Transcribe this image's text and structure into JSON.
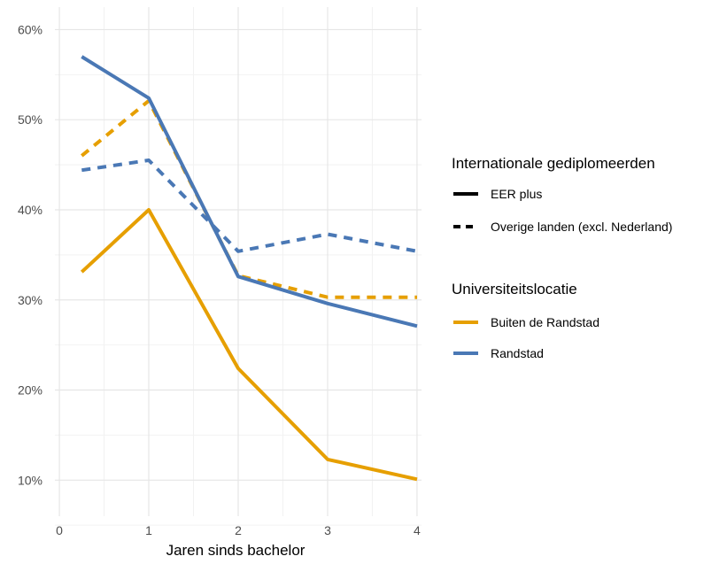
{
  "chart_data": {
    "type": "line",
    "xlabel": "Jaren sinds bachelor",
    "ylabel": "",
    "xlim": [
      -0.05,
      4.05
    ],
    "ylim": [
      0.06,
      0.625
    ],
    "x_ticks": [
      0,
      1,
      2,
      3,
      4
    ],
    "x_tick_labels": [
      "0",
      "1",
      "2",
      "3",
      "4"
    ],
    "y_ticks": [
      0.1,
      0.2,
      0.3,
      0.4,
      0.5,
      0.6
    ],
    "y_tick_labels": [
      "10%",
      "20%",
      "30%",
      "40%",
      "50%",
      "60%"
    ],
    "grid": true,
    "legend_position": "right",
    "legends": [
      {
        "title": "Internationale gediplomeerden",
        "entries": [
          {
            "label": "EER plus",
            "linetype": "solid"
          },
          {
            "label": "Overige landen (excl. Nederland)",
            "linetype": "dashed"
          }
        ]
      },
      {
        "title": "Universiteitslocatie",
        "entries": [
          {
            "label": "Buiten de Randstad",
            "color": "#E69F00"
          },
          {
            "label": "Randstad",
            "color": "#4A78B5"
          }
        ]
      }
    ],
    "series": [
      {
        "color": "#E69F00",
        "linetype": "dashed",
        "x": [
          0.25,
          1,
          2,
          3,
          4
        ],
        "y": [
          0.46,
          0.521,
          0.327,
          0.303,
          0.303
        ]
      },
      {
        "color": "#4A78B5",
        "linetype": "dashed",
        "x": [
          0.25,
          1,
          2,
          3,
          4
        ],
        "y": [
          0.444,
          0.455,
          0.354,
          0.373,
          0.354
        ]
      },
      {
        "color": "#E69F00",
        "linetype": "solid",
        "x": [
          0.25,
          1,
          2,
          3,
          4
        ],
        "y": [
          0.331,
          0.4,
          0.224,
          0.123,
          0.101
        ]
      },
      {
        "color": "#4A78B5",
        "linetype": "solid",
        "x": [
          0.25,
          1,
          2,
          3,
          4
        ],
        "y": [
          0.57,
          0.524,
          0.326,
          0.296,
          0.271
        ]
      }
    ]
  }
}
